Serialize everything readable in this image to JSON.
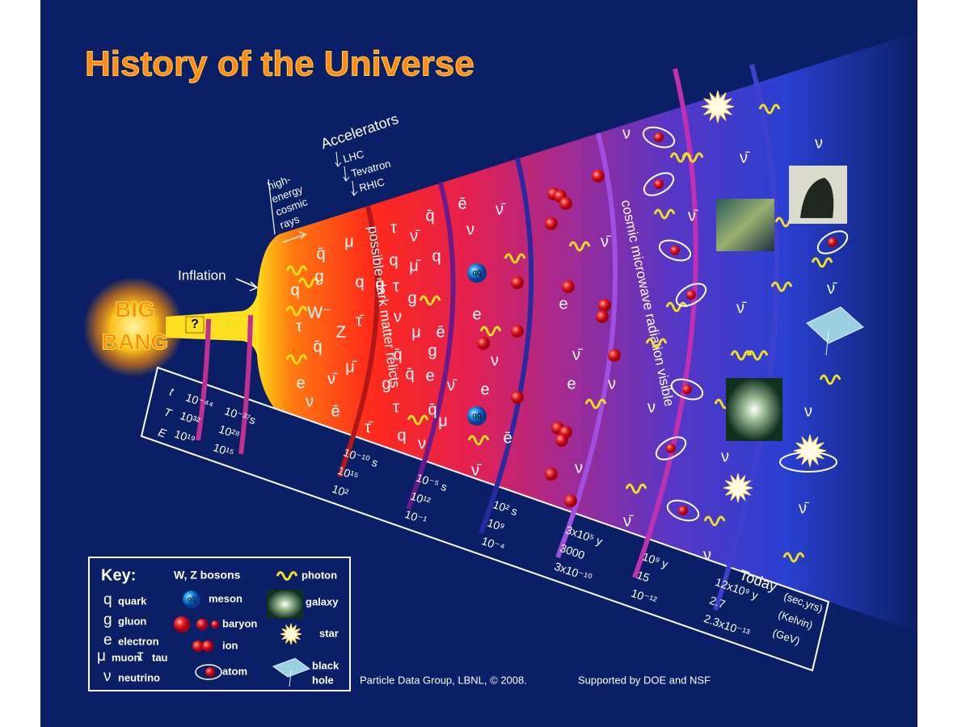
{
  "title": "History of the Universe",
  "big_bang": [
    "BIG",
    "BANG"
  ],
  "unknown_mark": "?",
  "inflation": "Inflation",
  "cosmic_rays": [
    "high-",
    "energy",
    "cosmic",
    "rays"
  ],
  "accelerators": {
    "title": "Accelerators",
    "items": [
      "LHC",
      "Tevatron",
      "RHIC"
    ]
  },
  "arc_labels": [
    "possible dark matter relicts",
    "cosmic microwave radiation visible"
  ],
  "meson_symbol": "qq̄",
  "particles": [
    "q̄",
    "μ",
    "τ",
    "ν̄",
    "q̄",
    "q",
    "g",
    "q",
    "q",
    "μ̄",
    "q",
    "τ",
    "W⁻",
    "q̄",
    "τ",
    "g",
    "Z",
    "q̄",
    "τ̄",
    "ν",
    "μ",
    "ē",
    "μ̄",
    "q̄",
    "g",
    "e",
    "ν̄",
    "g",
    "q̄",
    "e",
    "ν̄",
    "ν",
    "ē",
    "τ",
    "q̄",
    "μ",
    "τ̄",
    "q",
    "ν",
    "ē",
    "ν̄",
    "ν",
    "e",
    "ν",
    "e",
    "ē",
    "ν̄",
    "ν̄",
    "e",
    "ν̄",
    "e",
    "ν",
    "ν",
    "ν",
    "ν̄",
    "ν",
    "ν̄",
    "ν̄",
    "ν̄",
    "ν",
    "ν",
    "ν",
    "ν̄",
    "ν",
    "ν̄"
  ],
  "timeline": {
    "rows": [
      "t",
      "T",
      "E"
    ],
    "columns": [
      [
        "10⁻⁴⁴",
        "10³²",
        "10¹⁹"
      ],
      [
        "10⁻³⁷s",
        "10²⁸",
        "10¹⁵"
      ],
      [
        "10⁻¹⁰ s",
        "10¹⁵",
        "10²"
      ],
      [
        "10⁻⁵ s",
        "10¹²",
        "10⁻¹"
      ],
      [
        "10² s",
        "10⁹",
        "10⁻⁴"
      ],
      [
        "3x10⁵ y",
        "3000",
        "3x10⁻¹⁰"
      ],
      [
        "10⁹ y",
        "15",
        "10⁻¹²"
      ],
      [
        "12x10⁹ y",
        "2.7",
        "2.3x10⁻¹³"
      ]
    ],
    "units": [
      "(sec,yrs)",
      "(Kelvin)",
      "(GeV)"
    ],
    "today": "Today"
  },
  "key": {
    "title": "Key:",
    "symbols": [
      {
        "symbol": "q",
        "label": "quark"
      },
      {
        "symbol": "g",
        "label": "gluon"
      },
      {
        "symbol": "e",
        "label": "electron"
      },
      {
        "symbol": "μ",
        "label": "muon"
      },
      {
        "symbol": "τ",
        "label": "tau"
      },
      {
        "symbol": "ν",
        "label": "neutrino"
      }
    ],
    "bosons": "W, Z bosons",
    "icons": [
      "meson",
      "baryon",
      "ion",
      "atom",
      "photon",
      "galaxy",
      "star"
    ],
    "black_hole": [
      "black",
      "hole"
    ]
  },
  "credit": [
    "Particle Data Group, LBNL, © 2008.",
    "Supported by DOE and NSF"
  ]
}
